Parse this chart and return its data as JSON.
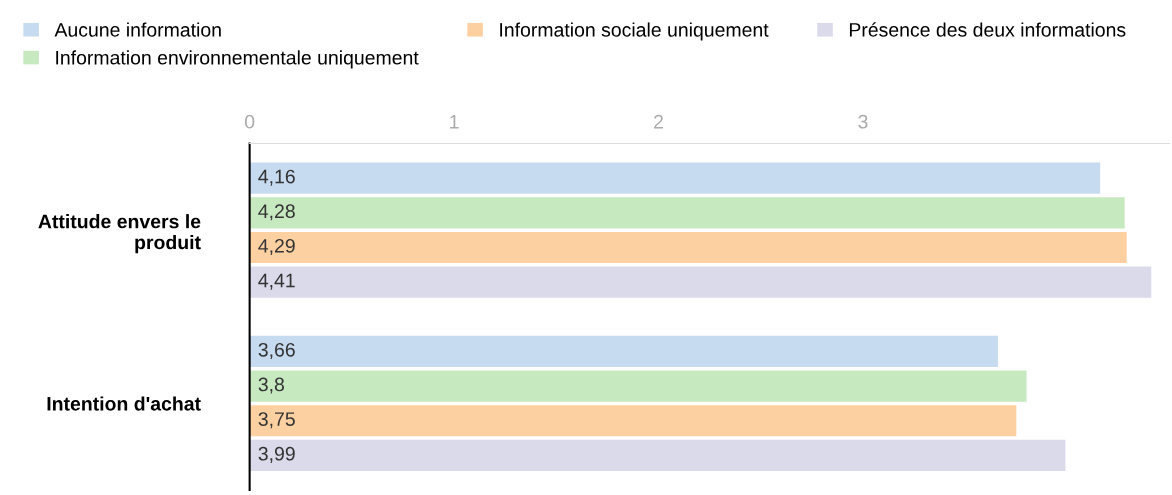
{
  "chart_data": {
    "type": "bar",
    "orientation": "horizontal",
    "categories": [
      "Attitude envers le produit",
      "Intention d'achat"
    ],
    "series": [
      {
        "name": "Aucune information",
        "color": "#c6dbef",
        "values": [
          4.16,
          3.66
        ]
      },
      {
        "name": "Information environnementale uniquement",
        "color": "#c7e9c0",
        "values": [
          4.28,
          3.8
        ]
      },
      {
        "name": "Information sociale uniquement",
        "color": "#fdd0a2",
        "values": [
          4.29,
          3.75
        ]
      },
      {
        "name": "Présence des deux informations",
        "color": "#dadaeb",
        "values": [
          4.41,
          3.99
        ]
      }
    ],
    "value_labels": [
      [
        "4,16",
        "3,66"
      ],
      [
        "4,28",
        "3,8"
      ],
      [
        "4,29",
        "3,75"
      ],
      [
        "4,41",
        "3,99"
      ]
    ],
    "xlim": [
      0,
      4.5
    ],
    "xticks": [
      0,
      1,
      2,
      3
    ],
    "legend": "top",
    "grid": false
  }
}
